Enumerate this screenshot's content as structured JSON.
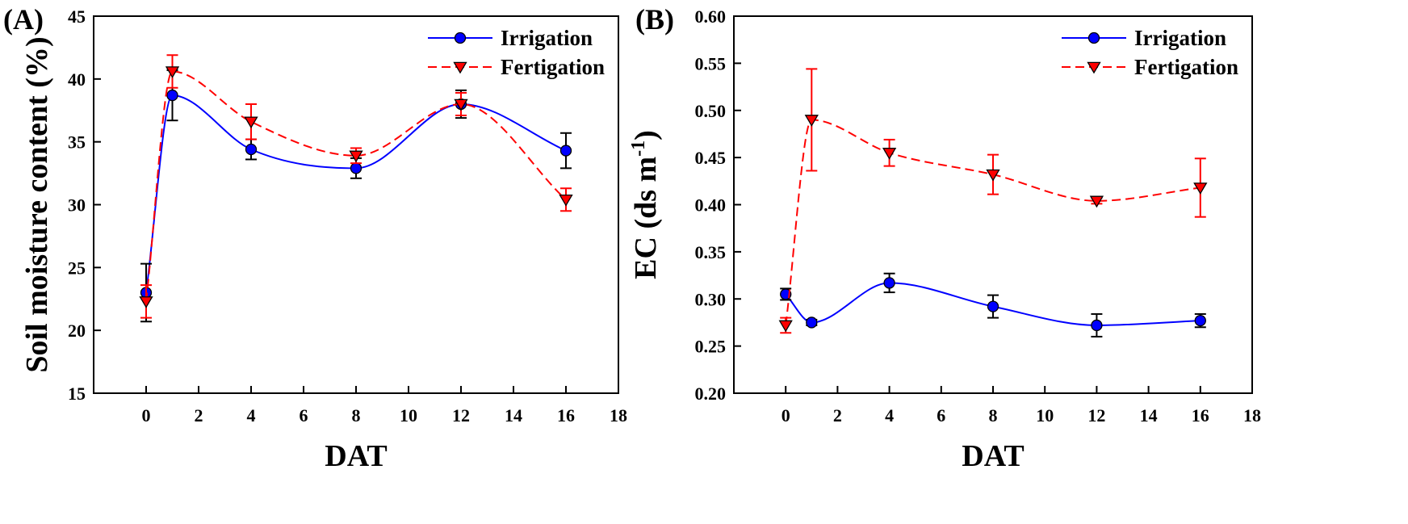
{
  "chart_data": [
    {
      "type": "line",
      "panel_label": "(A)",
      "xlabel": "DAT",
      "ylabel": "Soil moisture content (%)",
      "xlim": [
        -2,
        18
      ],
      "ylim": [
        15,
        45
      ],
      "xticks": [
        0,
        2,
        4,
        6,
        8,
        10,
        12,
        14,
        16,
        18
      ],
      "yticks": [
        15,
        20,
        25,
        30,
        35,
        40,
        45
      ],
      "ytick_decimals": 0,
      "legend_position": "top-right",
      "series": [
        {
          "name": "Irrigation",
          "color": "#0000ff",
          "marker": "circle",
          "line_style": "solid",
          "x": [
            0,
            1,
            4,
            8,
            12,
            16
          ],
          "y": [
            23.0,
            38.7,
            34.4,
            32.9,
            38.0,
            34.3
          ],
          "err": [
            2.3,
            2.0,
            0.8,
            0.8,
            1.1,
            1.4
          ]
        },
        {
          "name": "Fertigation",
          "color": "#ff0000",
          "marker": "triangle-down",
          "line_style": "dashed",
          "x": [
            0,
            1,
            4,
            8,
            12,
            16
          ],
          "y": [
            22.3,
            40.6,
            36.6,
            33.9,
            38.0,
            30.4
          ],
          "err": [
            1.3,
            1.3,
            1.4,
            0.6,
            0.9,
            0.9
          ]
        }
      ]
    },
    {
      "type": "line",
      "panel_label": "(B)",
      "xlabel": "DAT",
      "ylabel_main": "EC (ds m",
      "ylabel_sup": "-1",
      "ylabel_end": ")",
      "xlim": [
        -2,
        18
      ],
      "ylim": [
        0.2,
        0.6
      ],
      "xticks": [
        0,
        2,
        4,
        6,
        8,
        10,
        12,
        14,
        16,
        18
      ],
      "yticks": [
        0.2,
        0.25,
        0.3,
        0.35,
        0.4,
        0.45,
        0.5,
        0.55,
        0.6
      ],
      "ytick_decimals": 2,
      "legend_position": "top-right",
      "series": [
        {
          "name": "Irrigation",
          "color": "#0000ff",
          "marker": "circle",
          "line_style": "solid",
          "x": [
            0,
            1,
            4,
            8,
            12,
            16
          ],
          "y": [
            0.305,
            0.275,
            0.317,
            0.292,
            0.272,
            0.277
          ],
          "err": [
            0.006,
            0.003,
            0.01,
            0.012,
            0.012,
            0.007
          ]
        },
        {
          "name": "Fertigation",
          "color": "#ff0000",
          "marker": "triangle-down",
          "line_style": "dashed",
          "x": [
            0,
            1,
            4,
            8,
            12,
            16
          ],
          "y": [
            0.272,
            0.49,
            0.455,
            0.432,
            0.404,
            0.418
          ],
          "err": [
            0.008,
            0.054,
            0.014,
            0.021,
            0.003,
            0.031
          ]
        }
      ]
    }
  ]
}
